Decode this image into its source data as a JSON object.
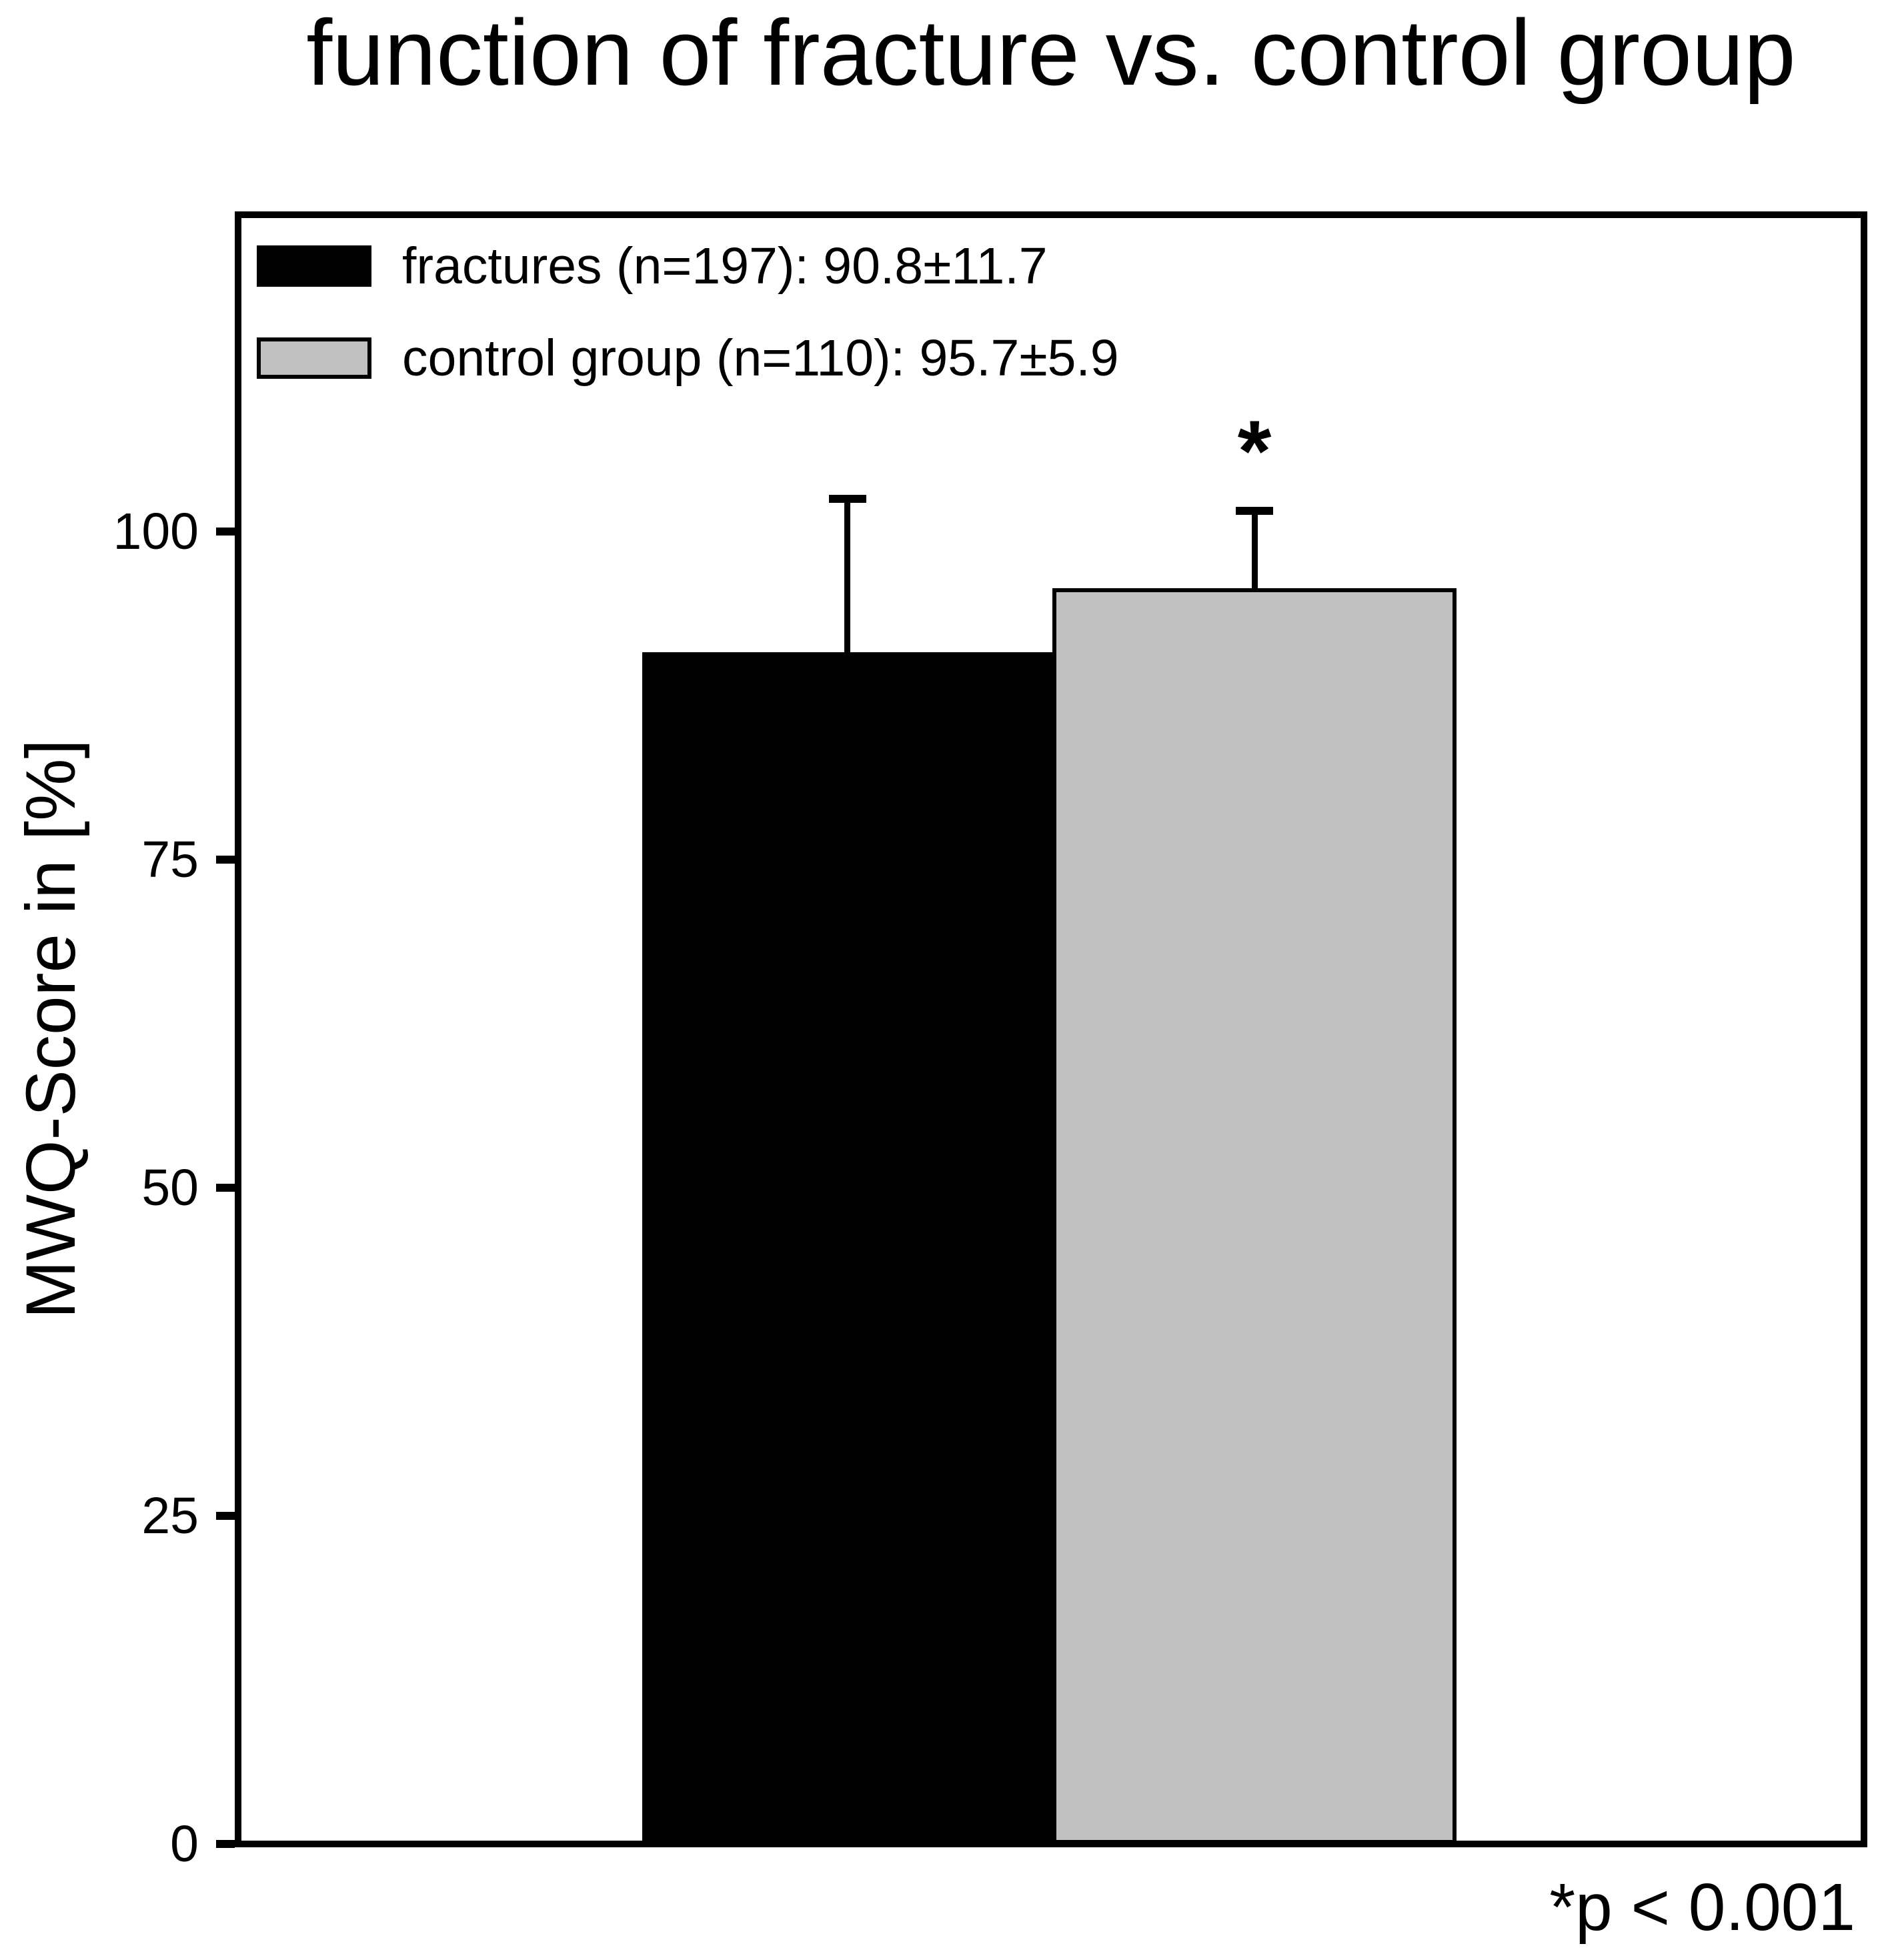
{
  "title": "function of fracture vs. control group",
  "y_axis_label": "MWQ-Score in [%]",
  "annotation": "*p < 0.001",
  "colors": {
    "fractures_bar": "#000000",
    "control_bar": "#c0c0c0",
    "axis": "#000000",
    "background": "#ffffff",
    "text": "#000000"
  },
  "legend": {
    "items": [
      {
        "label": "fractures (n=197): 90.8±11.7",
        "swatch_color": "#000000"
      },
      {
        "label": "control group (n=110): 95.7±5.9",
        "swatch_color": "#c0c0c0"
      }
    ]
  },
  "chart_data": {
    "type": "bar",
    "categories": [
      "fractures",
      "control group"
    ],
    "series": [
      {
        "name": "MWQ-Score in [%]",
        "values": [
          90.8,
          95.7
        ]
      }
    ],
    "error_bars": {
      "type": "sd, upper only",
      "values": [
        11.7,
        5.9
      ]
    },
    "n": [
      197,
      110
    ],
    "title": "function of fracture vs. control group",
    "xlabel": "",
    "ylabel": "MWQ-Score in [%]",
    "ylim": [
      0,
      124
    ],
    "yticks": [
      0,
      25,
      50,
      75,
      100
    ],
    "grid": false,
    "legend_position": "top-left inside plot",
    "bar_colors": [
      "#000000",
      "#c0c0c0"
    ],
    "significance_markers": [
      "",
      "*"
    ],
    "significance_note": "*p < 0.001"
  }
}
